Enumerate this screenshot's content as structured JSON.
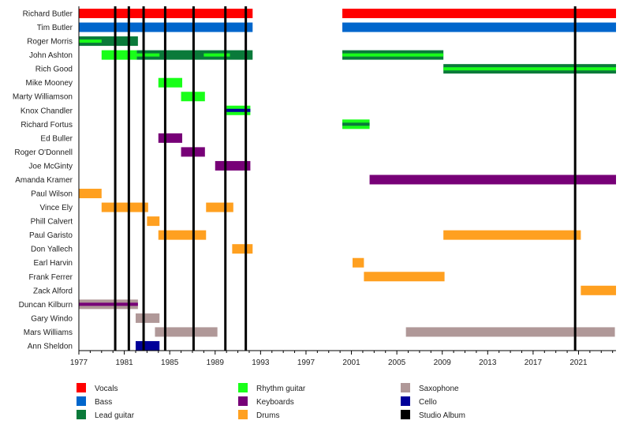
{
  "chart_data": {
    "type": "timeline",
    "x_range": [
      1977,
      2024.3
    ],
    "x_ticks": [
      "1977",
      "1981",
      "1985",
      "1989",
      "1993",
      "1997",
      "2001",
      "2005",
      "2009",
      "2013",
      "2017",
      "2021"
    ],
    "colors": {
      "vocals": "#ff0000",
      "bass": "#0066cc",
      "lead": "#0a7a3a",
      "rhythm": "#19ff19",
      "keyboards": "#770077",
      "drums": "#ffa020",
      "sax": "#b09898",
      "cello": "#000099",
      "album": "#000000"
    },
    "legend": [
      {
        "role": "vocals",
        "label": "Vocals"
      },
      {
        "role": "bass",
        "label": "Bass"
      },
      {
        "role": "lead",
        "label": "Lead guitar"
      },
      {
        "role": "rhythm",
        "label": "Rhythm guitar"
      },
      {
        "role": "keyboards",
        "label": "Keyboards"
      },
      {
        "role": "drums",
        "label": "Drums"
      },
      {
        "role": "sax",
        "label": "Saxophone"
      },
      {
        "role": "cello",
        "label": "Cello"
      },
      {
        "role": "album",
        "label": "Studio Album"
      }
    ],
    "albums": [
      1980.2,
      1981.4,
      1982.7,
      1984.6,
      1987.1,
      1989.9,
      1991.7,
      2020.7
    ],
    "members": [
      {
        "name": "Richard Butler",
        "bars": [
          {
            "start": 1977,
            "end": 1992.3,
            "role": "vocals"
          },
          {
            "start": 2000.2,
            "end": 2024.3,
            "role": "vocals"
          }
        ]
      },
      {
        "name": "Tim Butler",
        "bars": [
          {
            "start": 1977,
            "end": 1992.3,
            "role": "bass"
          },
          {
            "start": 2000.2,
            "end": 2024.3,
            "role": "bass"
          }
        ]
      },
      {
        "name": "Roger Morris",
        "bars": [
          {
            "start": 1977,
            "end": 1982.2,
            "role": "lead"
          }
        ],
        "stripes": [
          {
            "start": 1977,
            "end": 1979,
            "role": "rhythm"
          }
        ]
      },
      {
        "name": "John Ashton",
        "bars": [
          {
            "start": 1979,
            "end": 1982.1,
            "role": "rhythm"
          },
          {
            "start": 1982.1,
            "end": 1992.3,
            "role": "lead"
          },
          {
            "start": 2000.2,
            "end": 2009.1,
            "role": "lead"
          }
        ],
        "stripes": [
          {
            "start": 1982.1,
            "end": 1984.1,
            "role": "rhythm"
          },
          {
            "start": 1988,
            "end": 1990.3,
            "role": "rhythm"
          },
          {
            "start": 2000.2,
            "end": 2009.1,
            "role": "rhythm"
          }
        ]
      },
      {
        "name": "Rich Good",
        "bars": [
          {
            "start": 2009.1,
            "end": 2024.3,
            "role": "lead"
          }
        ],
        "stripes": [
          {
            "start": 2009.1,
            "end": 2024.3,
            "role": "rhythm"
          }
        ]
      },
      {
        "name": "Mike Mooney",
        "bars": [
          {
            "start": 1984,
            "end": 1986.1,
            "role": "rhythm"
          }
        ]
      },
      {
        "name": "Marty Williamson",
        "bars": [
          {
            "start": 1986,
            "end": 1988.1,
            "role": "rhythm"
          }
        ]
      },
      {
        "name": "Knox Chandler",
        "bars": [
          {
            "start": 1990,
            "end": 1992.1,
            "role": "rhythm"
          }
        ],
        "stripes": [
          {
            "start": 1990,
            "end": 1992.1,
            "role": "cello"
          }
        ]
      },
      {
        "name": "Richard Fortus",
        "bars": [
          {
            "start": 2000.2,
            "end": 2002.6,
            "role": "rhythm"
          }
        ],
        "stripes": [
          {
            "start": 2000.2,
            "end": 2002.6,
            "role": "lead"
          }
        ]
      },
      {
        "name": "Ed Buller",
        "bars": [
          {
            "start": 1984,
            "end": 1986.1,
            "role": "keyboards"
          }
        ]
      },
      {
        "name": "Roger O'Donnell",
        "bars": [
          {
            "start": 1986,
            "end": 1988.1,
            "role": "keyboards"
          }
        ]
      },
      {
        "name": "Joe McGinty",
        "bars": [
          {
            "start": 1989,
            "end": 1992.1,
            "role": "keyboards"
          }
        ]
      },
      {
        "name": "Amanda Kramer",
        "bars": [
          {
            "start": 2002.6,
            "end": 2024.3,
            "role": "keyboards"
          }
        ]
      },
      {
        "name": "Paul Wilson",
        "bars": [
          {
            "start": 1977,
            "end": 1979,
            "role": "drums"
          }
        ]
      },
      {
        "name": "Vince Ely",
        "bars": [
          {
            "start": 1979,
            "end": 1983.1,
            "role": "drums"
          },
          {
            "start": 1988.2,
            "end": 1990.6,
            "role": "drums"
          }
        ]
      },
      {
        "name": "Phill Calvert",
        "bars": [
          {
            "start": 1983,
            "end": 1984.1,
            "role": "drums"
          }
        ]
      },
      {
        "name": "Paul Garisto",
        "bars": [
          {
            "start": 1984,
            "end": 1988.2,
            "role": "drums"
          },
          {
            "start": 2009.1,
            "end": 2021.2,
            "role": "drums"
          }
        ]
      },
      {
        "name": "Don Yallech",
        "bars": [
          {
            "start": 1990.5,
            "end": 1992.3,
            "role": "drums"
          }
        ]
      },
      {
        "name": "Earl Harvin",
        "bars": [
          {
            "start": 2001.1,
            "end": 2002.1,
            "role": "drums"
          }
        ]
      },
      {
        "name": "Frank Ferrer",
        "bars": [
          {
            "start": 2002.1,
            "end": 2009.2,
            "role": "drums"
          }
        ]
      },
      {
        "name": "Zack Alford",
        "bars": [
          {
            "start": 2021.2,
            "end": 2024.3,
            "role": "drums"
          }
        ]
      },
      {
        "name": "Duncan Kilburn",
        "bars": [
          {
            "start": 1977,
            "end": 1982.2,
            "role": "sax"
          }
        ],
        "stripes": [
          {
            "start": 1977,
            "end": 1982.2,
            "role": "keyboards"
          }
        ]
      },
      {
        "name": "Gary Windo",
        "bars": [
          {
            "start": 1982,
            "end": 1984.1,
            "role": "sax"
          }
        ]
      },
      {
        "name": "Mars Williams",
        "bars": [
          {
            "start": 1983.7,
            "end": 1989.2,
            "role": "sax"
          },
          {
            "start": 2005.8,
            "end": 2024.2,
            "role": "sax"
          }
        ]
      },
      {
        "name": "Ann Sheldon",
        "bars": [
          {
            "start": 1982,
            "end": 1984.1,
            "role": "cello"
          }
        ]
      }
    ]
  }
}
